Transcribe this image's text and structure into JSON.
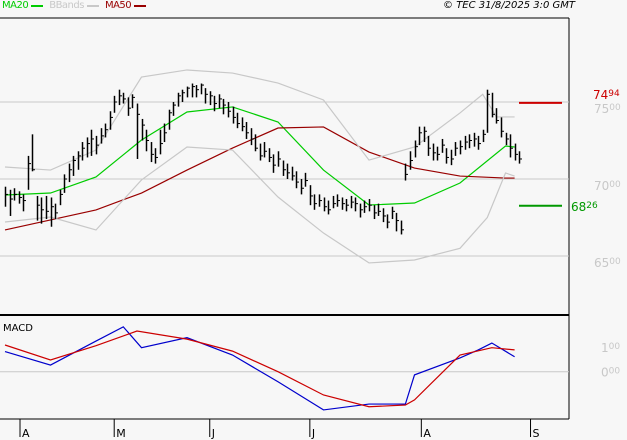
{
  "header": {
    "copyright": "© TEC 31/8/2025 3:0 GMT"
  },
  "legend": [
    {
      "name": "MA20",
      "color": "#00cc00"
    },
    {
      "name": "BBands",
      "color": "#c8c8c8"
    },
    {
      "name": "MA50",
      "color": "#990000"
    }
  ],
  "chart_data": [
    {
      "type": "ohlc",
      "y_axis": {
        "ticks": [
          {
            "value": 75,
            "label": "75",
            "sub": "00"
          },
          {
            "value": 70,
            "label": "70",
            "sub": "00"
          },
          {
            "value": 65,
            "label": "65",
            "sub": "00"
          }
        ],
        "color": "#c8c8c8"
      },
      "x_axis": {
        "ticks": [
          {
            "bar": 3.3,
            "label": "A"
          },
          {
            "bar": 24,
            "label": "M"
          },
          {
            "bar": 45,
            "label": "J"
          },
          {
            "bar": 67,
            "label": "J"
          },
          {
            "bar": 91.5,
            "label": "A"
          },
          {
            "bar": 115.5,
            "label": "S"
          }
        ]
      },
      "levels": [
        {
          "value": 74.94,
          "label": "74",
          "sub": "94",
          "color": "#cc0000"
        },
        {
          "value": 68.26,
          "label": "68",
          "sub": "26",
          "color": "#009900"
        }
      ],
      "bars": [
        [
          69.5,
          68.2,
          69.0
        ],
        [
          69.3,
          67.6,
          68.7
        ],
        [
          69.4,
          68.6,
          69.0
        ],
        [
          69.2,
          68.4,
          68.8
        ],
        [
          69.0,
          67.9,
          68.6
        ],
        [
          71.5,
          69.3,
          71.0
        ],
        [
          72.9,
          70.5,
          70.6
        ],
        [
          68.9,
          67.3,
          68.3
        ],
        [
          68.8,
          67.1,
          68.0
        ],
        [
          68.9,
          67.4,
          67.9
        ],
        [
          68.8,
          66.9,
          68.2
        ],
        [
          68.4,
          67.4,
          67.8
        ],
        [
          69.3,
          68.3,
          69.0
        ],
        [
          70.3,
          69.1,
          70.0
        ],
        [
          71.0,
          69.8,
          70.6
        ],
        [
          71.5,
          70.2,
          71.2
        ],
        [
          71.8,
          70.6,
          71.5
        ],
        [
          72.4,
          71.2,
          72.0
        ],
        [
          72.7,
          71.4,
          72.3
        ],
        [
          73.2,
          71.5,
          72.6
        ],
        [
          72.8,
          71.6,
          72.2
        ],
        [
          73.3,
          72.3,
          72.8
        ],
        [
          73.6,
          72.7,
          73.2
        ],
        [
          74.4,
          73.2,
          74.0
        ],
        [
          75.4,
          74.3,
          75.0
        ],
        [
          75.8,
          74.8,
          75.4
        ],
        [
          75.6,
          74.9,
          75.2
        ],
        [
          75.3,
          74.1,
          74.6
        ],
        [
          75.5,
          74.6,
          75.3
        ],
        [
          74.9,
          71.3,
          74.2
        ],
        [
          73.9,
          72.5,
          73.5
        ],
        [
          73.2,
          71.8,
          72.5
        ],
        [
          72.4,
          71.1,
          71.6
        ],
        [
          72.0,
          71.0,
          71.4
        ],
        [
          73.2,
          71.6,
          72.3
        ],
        [
          73.6,
          72.4,
          73.0
        ],
        [
          74.5,
          73.2,
          74.3
        ],
        [
          75.0,
          74.1,
          74.8
        ],
        [
          75.6,
          74.7,
          75.4
        ],
        [
          75.8,
          75.0,
          75.6
        ],
        [
          76.0,
          75.3,
          75.9
        ],
        [
          76.2,
          75.3,
          76.0
        ],
        [
          76.1,
          75.3,
          75.8
        ],
        [
          76.2,
          75.5,
          76.1
        ],
        [
          75.9,
          74.9,
          75.5
        ],
        [
          75.7,
          74.8,
          75.4
        ],
        [
          75.4,
          74.4,
          74.9
        ],
        [
          75.5,
          74.6,
          75.2
        ],
        [
          75.2,
          74.2,
          74.8
        ],
        [
          75.0,
          74.0,
          74.4
        ],
        [
          74.7,
          73.6,
          74.0
        ],
        [
          74.3,
          73.3,
          73.6
        ],
        [
          74.0,
          73.1,
          73.4
        ],
        [
          73.7,
          72.6,
          73.0
        ],
        [
          73.3,
          72.2,
          72.6
        ],
        [
          72.9,
          71.8,
          72.0
        ],
        [
          72.3,
          71.2,
          71.5
        ],
        [
          72.4,
          71.4,
          71.8
        ],
        [
          72.0,
          71.1,
          71.4
        ],
        [
          71.6,
          70.4,
          70.9
        ],
        [
          71.8,
          70.8,
          71.3
        ],
        [
          71.2,
          70.2,
          70.6
        ],
        [
          71.0,
          70.0,
          70.4
        ],
        [
          70.8,
          69.9,
          70.2
        ],
        [
          70.5,
          69.4,
          69.8
        ],
        [
          70.0,
          69.0,
          69.4
        ],
        [
          70.4,
          69.5,
          69.9
        ],
        [
          69.6,
          68.3,
          68.9
        ],
        [
          69.0,
          68.0,
          68.4
        ],
        [
          69.0,
          68.2,
          68.6
        ],
        [
          68.8,
          67.9,
          68.2
        ],
        [
          68.6,
          67.7,
          68.0
        ],
        [
          68.9,
          68.1,
          68.4
        ],
        [
          69.0,
          68.2,
          68.6
        ],
        [
          68.8,
          68.0,
          68.4
        ],
        [
          68.7,
          67.9,
          68.3
        ],
        [
          68.9,
          68.1,
          68.5
        ],
        [
          68.8,
          67.9,
          68.4
        ],
        [
          68.4,
          67.5,
          68.0
        ],
        [
          68.6,
          67.8,
          68.2
        ],
        [
          68.7,
          67.9,
          68.3
        ],
        [
          68.3,
          67.4,
          67.8
        ],
        [
          68.4,
          67.6,
          67.9
        ],
        [
          68.1,
          67.2,
          67.6
        ],
        [
          67.7,
          66.8,
          67.2
        ],
        [
          68.2,
          67.4,
          67.9
        ],
        [
          67.8,
          66.6,
          67.3
        ],
        [
          67.3,
          66.4,
          66.7
        ],
        [
          71.0,
          69.9,
          70.3
        ],
        [
          71.8,
          70.6,
          71.2
        ],
        [
          72.5,
          71.4,
          72.1
        ],
        [
          73.4,
          72.2,
          73.0
        ],
        [
          73.4,
          72.4,
          73.1
        ],
        [
          72.8,
          71.5,
          72.0
        ],
        [
          72.3,
          71.2,
          71.7
        ],
        [
          72.1,
          71.2,
          71.6
        ],
        [
          72.6,
          71.7,
          72.2
        ],
        [
          72.0,
          71.0,
          71.4
        ],
        [
          71.9,
          70.9,
          71.3
        ],
        [
          72.4,
          71.5,
          72.0
        ],
        [
          72.5,
          71.6,
          72.1
        ],
        [
          72.8,
          71.9,
          72.4
        ],
        [
          72.9,
          72.0,
          72.5
        ],
        [
          73.0,
          72.1,
          72.6
        ],
        [
          72.8,
          71.9,
          72.3
        ],
        [
          73.2,
          72.4,
          72.9
        ],
        [
          75.8,
          73.0,
          75.5
        ],
        [
          75.6,
          74.0,
          74.2
        ],
        [
          74.6,
          73.6,
          73.8
        ],
        [
          74.0,
          72.7,
          73.1
        ],
        [
          73.0,
          72.2,
          72.6
        ],
        [
          72.9,
          71.4,
          72.0
        ],
        [
          72.3,
          71.2,
          71.6
        ],
        [
          71.8,
          71.0,
          71.3
        ]
      ],
      "series": [
        {
          "name": "MA20",
          "color": "#00cc00",
          "points": [
            [
              0,
              68.96
            ],
            [
              10,
              69.09
            ],
            [
              20,
              70.13
            ],
            [
              30,
              72.53
            ],
            [
              40,
              74.35
            ],
            [
              50,
              74.68
            ],
            [
              60,
              73.7
            ],
            [
              70,
              70.58
            ],
            [
              80,
              68.31
            ],
            [
              90,
              68.44
            ],
            [
              100,
              69.74
            ],
            [
              110,
              72.14
            ],
            [
              112,
              72.08
            ]
          ]
        },
        {
          "name": "MA50",
          "color": "#990000",
          "points": [
            [
              0,
              66.69
            ],
            [
              10,
              67.34
            ],
            [
              20,
              67.99
            ],
            [
              30,
              69.09
            ],
            [
              40,
              70.58
            ],
            [
              50,
              72.01
            ],
            [
              60,
              73.31
            ],
            [
              70,
              73.38
            ],
            [
              80,
              71.75
            ],
            [
              90,
              70.71
            ],
            [
              100,
              70.19
            ],
            [
              110,
              70.06
            ],
            [
              112,
              70.06
            ]
          ]
        },
        {
          "name": "BBands-upper",
          "color": "#c8c8c8",
          "points": [
            [
              0,
              70.78
            ],
            [
              10,
              70.58
            ],
            [
              20,
              71.88
            ],
            [
              30,
              76.62
            ],
            [
              40,
              77.08
            ],
            [
              50,
              76.88
            ],
            [
              60,
              76.23
            ],
            [
              70,
              75.13
            ],
            [
              80,
              71.23
            ],
            [
              90,
              72.08
            ],
            [
              100,
              74.29
            ],
            [
              105,
              75.5
            ],
            [
              108,
              74.03
            ],
            [
              112,
              74.03
            ]
          ]
        },
        {
          "name": "BBands-lower",
          "color": "#c8c8c8",
          "points": [
            [
              0,
              67.21
            ],
            [
              10,
              67.53
            ],
            [
              20,
              66.69
            ],
            [
              30,
              69.94
            ],
            [
              40,
              72.08
            ],
            [
              50,
              71.88
            ],
            [
              60,
              68.83
            ],
            [
              70,
              66.49
            ],
            [
              80,
              64.55
            ],
            [
              90,
              64.74
            ],
            [
              100,
              65.5
            ],
            [
              106,
              67.5
            ],
            [
              110,
              70.39
            ],
            [
              112,
              70.19
            ]
          ]
        }
      ]
    },
    {
      "type": "line",
      "title": "MACD",
      "y_axis": {
        "ticks": [
          {
            "value": 1,
            "label": "1",
            "sub": "00"
          },
          {
            "value": 0,
            "label": "0",
            "sub": "00"
          }
        ]
      },
      "series": [
        {
          "color": "#0000cc",
          "points": [
            [
              0,
              0.82
            ],
            [
              10,
              0.27
            ],
            [
              20,
              1.25
            ],
            [
              26,
              1.83
            ],
            [
              30,
              0.98
            ],
            [
              40,
              1.39
            ],
            [
              50,
              0.68
            ],
            [
              60,
              -0.41
            ],
            [
              70,
              -1.56
            ],
            [
              80,
              -1.32
            ],
            [
              88,
              -1.32
            ],
            [
              90,
              -0.13
            ],
            [
              100,
              0.56
            ],
            [
              104,
              0.89
            ],
            [
              107,
              1.17
            ],
            [
              112,
              0.61
            ]
          ]
        },
        {
          "color": "#cc0000",
          "points": [
            [
              0,
              1.09
            ],
            [
              10,
              0.48
            ],
            [
              20,
              1.06
            ],
            [
              29,
              1.66
            ],
            [
              40,
              1.33
            ],
            [
              50,
              0.84
            ],
            [
              60,
              0.0
            ],
            [
              70,
              -0.95
            ],
            [
              80,
              -1.43
            ],
            [
              88,
              -1.36
            ],
            [
              90,
              -1.15
            ],
            [
              100,
              0.68
            ],
            [
              107,
              0.98
            ],
            [
              112,
              0.89
            ]
          ]
        }
      ]
    }
  ]
}
